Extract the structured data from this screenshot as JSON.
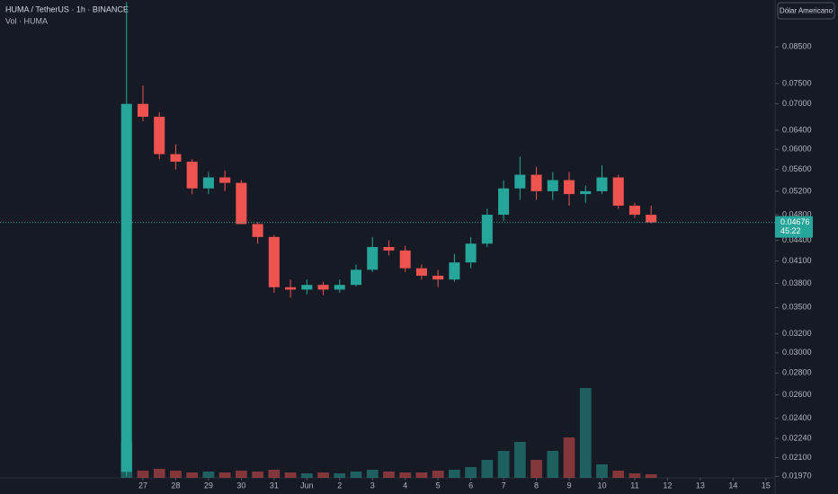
{
  "chart_data": {
    "type": "candlestick",
    "title": "HUMA / TetherUS · 1h · BINANCE",
    "subtitle": "Vol · HUMA",
    "currency_button": "Dólar Americano",
    "x": [
      -0.5,
      0,
      0.5,
      1,
      1.5,
      2,
      2.5,
      3,
      3.5,
      4,
      4.5,
      5,
      5.5,
      6,
      6.5,
      7,
      7.5,
      8,
      8.5,
      9,
      9.5,
      10,
      10.5,
      11,
      11.5,
      12,
      12.5,
      13,
      13.5,
      14,
      14.5,
      15,
      15.5
    ],
    "open": [
      0.02,
      0.07,
      0.067,
      0.059,
      0.0575,
      0.0525,
      0.0545,
      0.0535,
      0.0465,
      0.0445,
      0.0375,
      0.0372,
      0.0378,
      0.0372,
      0.0378,
      0.0398,
      0.043,
      0.0425,
      0.04,
      0.039,
      0.0385,
      0.0408,
      0.0435,
      0.048,
      0.0525,
      0.055,
      0.052,
      0.054,
      0.0515,
      0.052,
      0.0545,
      0.0495,
      0.048
    ],
    "high": [
      0.099,
      0.0745,
      0.068,
      0.061,
      0.058,
      0.0555,
      0.0558,
      0.054,
      0.0468,
      0.0448,
      0.0385,
      0.0385,
      0.0382,
      0.0385,
      0.0405,
      0.0445,
      0.044,
      0.0432,
      0.0405,
      0.0398,
      0.042,
      0.0445,
      0.049,
      0.054,
      0.0585,
      0.0565,
      0.0555,
      0.0555,
      0.053,
      0.0568,
      0.055,
      0.05,
      0.0495
    ],
    "low": [
      0.0197,
      0.066,
      0.058,
      0.056,
      0.0515,
      0.0515,
      0.052,
      0.047,
      0.0435,
      0.0368,
      0.0362,
      0.0366,
      0.0365,
      0.0368,
      0.0376,
      0.0395,
      0.0418,
      0.0395,
      0.0385,
      0.0375,
      0.0382,
      0.04,
      0.043,
      0.047,
      0.0505,
      0.0505,
      0.0505,
      0.0495,
      0.05,
      0.0515,
      0.049,
      0.0475,
      0.0466
    ],
    "close": [
      0.07,
      0.067,
      0.059,
      0.0575,
      0.0525,
      0.0545,
      0.0535,
      0.0465,
      0.0445,
      0.0375,
      0.0372,
      0.0378,
      0.0372,
      0.0378,
      0.0398,
      0.043,
      0.0425,
      0.04,
      0.039,
      0.0385,
      0.0408,
      0.0435,
      0.048,
      0.0525,
      0.055,
      0.052,
      0.054,
      0.0515,
      0.052,
      0.0545,
      0.0495,
      0.048,
      0.04676
    ],
    "volume": [
      40,
      8,
      10,
      8,
      6,
      7,
      6,
      8,
      7,
      9,
      6,
      5,
      6,
      5,
      7,
      9,
      7,
      6,
      6,
      8,
      9,
      12,
      20,
      30,
      40,
      20,
      30,
      45,
      100,
      15,
      8,
      5,
      4
    ],
    "xlim": [
      -4.36,
      19.28
    ],
    "xticks": [
      {
        "value": 0,
        "label": "27"
      },
      {
        "value": 1,
        "label": "28"
      },
      {
        "value": 2,
        "label": "29"
      },
      {
        "value": 3,
        "label": "30"
      },
      {
        "value": 4,
        "label": "31"
      },
      {
        "value": 5,
        "label": "Jun"
      },
      {
        "value": 6,
        "label": "2"
      },
      {
        "value": 7,
        "label": "3"
      },
      {
        "value": 8,
        "label": "4"
      },
      {
        "value": 9,
        "label": "5"
      },
      {
        "value": 10,
        "label": "6"
      },
      {
        "value": 11,
        "label": "7"
      },
      {
        "value": 12,
        "label": "8"
      },
      {
        "value": 13,
        "label": "9"
      },
      {
        "value": 14,
        "label": "10"
      },
      {
        "value": 15,
        "label": "11"
      },
      {
        "value": 16,
        "label": "12"
      },
      {
        "value": 17,
        "label": "13"
      },
      {
        "value": 18,
        "label": "14"
      },
      {
        "value": 19,
        "label": "15"
      }
    ],
    "ylim": [
      0.0196,
      0.0997
    ],
    "yticks": [
      {
        "value": 0.085,
        "label": "0.08500"
      },
      {
        "value": 0.075,
        "label": "0.07500"
      },
      {
        "value": 0.07,
        "label": "0.07000"
      },
      {
        "value": 0.064,
        "label": "0.06400"
      },
      {
        "value": 0.06,
        "label": "0.06000"
      },
      {
        "value": 0.056,
        "label": "0.05600"
      },
      {
        "value": 0.052,
        "label": "0.05200"
      },
      {
        "value": 0.048,
        "label": "0.04800"
      },
      {
        "value": 0.044,
        "label": "0.04400"
      },
      {
        "value": 0.041,
        "label": "0.04100"
      },
      {
        "value": 0.038,
        "label": "0.03800"
      },
      {
        "value": 0.035,
        "label": "0.03500"
      },
      {
        "value": 0.032,
        "label": "0.03200"
      },
      {
        "value": 0.03,
        "label": "0.03000"
      },
      {
        "value": 0.028,
        "label": "0.02800"
      },
      {
        "value": 0.026,
        "label": "0.02600"
      },
      {
        "value": 0.024,
        "label": "0.02400"
      },
      {
        "value": 0.0224,
        "label": "0.02240"
      },
      {
        "value": 0.021,
        "label": "0.02100"
      },
      {
        "value": 0.0197,
        "label": "0.01970"
      }
    ],
    "log_scale": true,
    "up_color": "#26a69a",
    "down_color": "#ef5350",
    "last_price": 0.04676,
    "countdown": "45:22"
  }
}
